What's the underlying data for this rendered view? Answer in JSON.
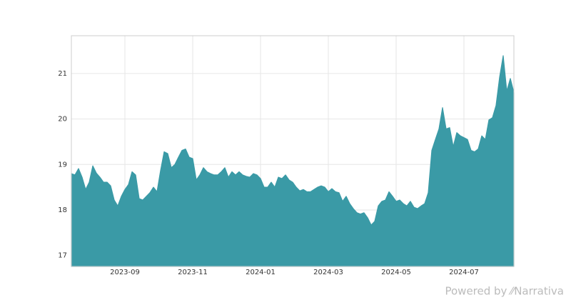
{
  "chart_data": {
    "type": "area",
    "x": [
      "2023-07",
      "2023-07",
      "2023-07",
      "2023-07",
      "2023-07",
      "2023-08",
      "2023-08",
      "2023-08",
      "2023-08",
      "2023-08",
      "2023-08",
      "2023-08",
      "2023-08",
      "2023-08",
      "2023-08",
      "2023-09",
      "2023-09",
      "2023-09",
      "2023-09",
      "2023-09",
      "2023-09",
      "2023-09",
      "2023-09",
      "2023-09",
      "2023-10",
      "2023-10",
      "2023-10",
      "2023-10",
      "2023-10",
      "2023-10",
      "2023-10",
      "2023-10",
      "2023-10",
      "2023-10",
      "2023-11",
      "2023-11",
      "2023-11",
      "2023-11",
      "2023-11",
      "2023-11",
      "2023-11",
      "2023-11",
      "2023-11",
      "2023-12",
      "2023-12",
      "2023-12",
      "2023-12",
      "2023-12",
      "2023-12",
      "2023-12",
      "2023-12",
      "2023-12",
      "2023-12",
      "2024-01",
      "2024-01",
      "2024-01",
      "2024-01",
      "2024-01",
      "2024-01",
      "2024-01",
      "2024-01",
      "2024-01",
      "2024-01",
      "2024-02",
      "2024-02",
      "2024-02",
      "2024-02",
      "2024-02",
      "2024-02",
      "2024-02",
      "2024-02",
      "2024-02",
      "2024-03",
      "2024-03",
      "2024-03",
      "2024-03",
      "2024-03",
      "2024-03",
      "2024-03",
      "2024-03",
      "2024-03",
      "2024-04",
      "2024-04",
      "2024-04",
      "2024-04",
      "2024-04",
      "2024-04",
      "2024-04",
      "2024-04",
      "2024-04",
      "2024-04",
      "2024-05",
      "2024-05",
      "2024-05",
      "2024-05",
      "2024-05",
      "2024-05",
      "2024-05",
      "2024-05",
      "2024-05",
      "2024-05",
      "2024-06",
      "2024-06",
      "2024-06",
      "2024-06",
      "2024-06",
      "2024-06",
      "2024-06",
      "2024-06",
      "2024-06",
      "2024-07",
      "2024-07",
      "2024-07",
      "2024-07",
      "2024-07",
      "2024-07",
      "2024-07",
      "2024-07",
      "2024-07",
      "2024-08",
      "2024-08",
      "2024-08",
      "2024-08",
      "2024-08",
      "2024-08"
    ],
    "series": [
      {
        "color": "#3a9aa6",
        "values": [
          18.8,
          18.77,
          18.91,
          18.72,
          18.45,
          18.61,
          18.97,
          18.81,
          18.72,
          18.61,
          18.61,
          18.53,
          18.22,
          18.09,
          18.3,
          18.45,
          18.56,
          18.84,
          18.77,
          18.25,
          18.22,
          18.3,
          18.38,
          18.5,
          18.4,
          18.87,
          19.28,
          19.24,
          18.93,
          19.0,
          19.16,
          19.31,
          19.34,
          19.16,
          19.13,
          18.66,
          18.77,
          18.93,
          18.84,
          18.8,
          18.77,
          18.77,
          18.84,
          18.93,
          18.72,
          18.84,
          18.77,
          18.84,
          18.77,
          18.74,
          18.72,
          18.8,
          18.77,
          18.69,
          18.5,
          18.5,
          18.61,
          18.5,
          18.72,
          18.69,
          18.77,
          18.66,
          18.61,
          18.5,
          18.42,
          18.45,
          18.4,
          18.4,
          18.45,
          18.5,
          18.53,
          18.5,
          18.4,
          18.47,
          18.4,
          18.38,
          18.19,
          18.3,
          18.14,
          18.03,
          17.94,
          17.91,
          17.94,
          17.83,
          17.67,
          17.75,
          18.09,
          18.19,
          18.22,
          18.4,
          18.3,
          18.19,
          18.22,
          18.14,
          18.09,
          18.19,
          18.06,
          18.03,
          18.09,
          18.14,
          18.38,
          19.31,
          19.55,
          19.78,
          20.25,
          19.78,
          19.81,
          19.39,
          19.7,
          19.63,
          19.59,
          19.55,
          19.31,
          19.28,
          19.34,
          19.63,
          19.55,
          19.98,
          20.03,
          20.3,
          20.92,
          21.39,
          20.61,
          20.89,
          20.58
        ]
      }
    ],
    "ylim": [
      16.76,
      21.83
    ],
    "yticks": [
      17,
      18,
      19,
      20,
      21
    ],
    "xticks": [
      "2023-09",
      "2023-11",
      "2024-01",
      "2024-03",
      "2024-05",
      "2024-07"
    ],
    "grid": true,
    "credit": "Powered by ⁄⁄Narrativa"
  }
}
